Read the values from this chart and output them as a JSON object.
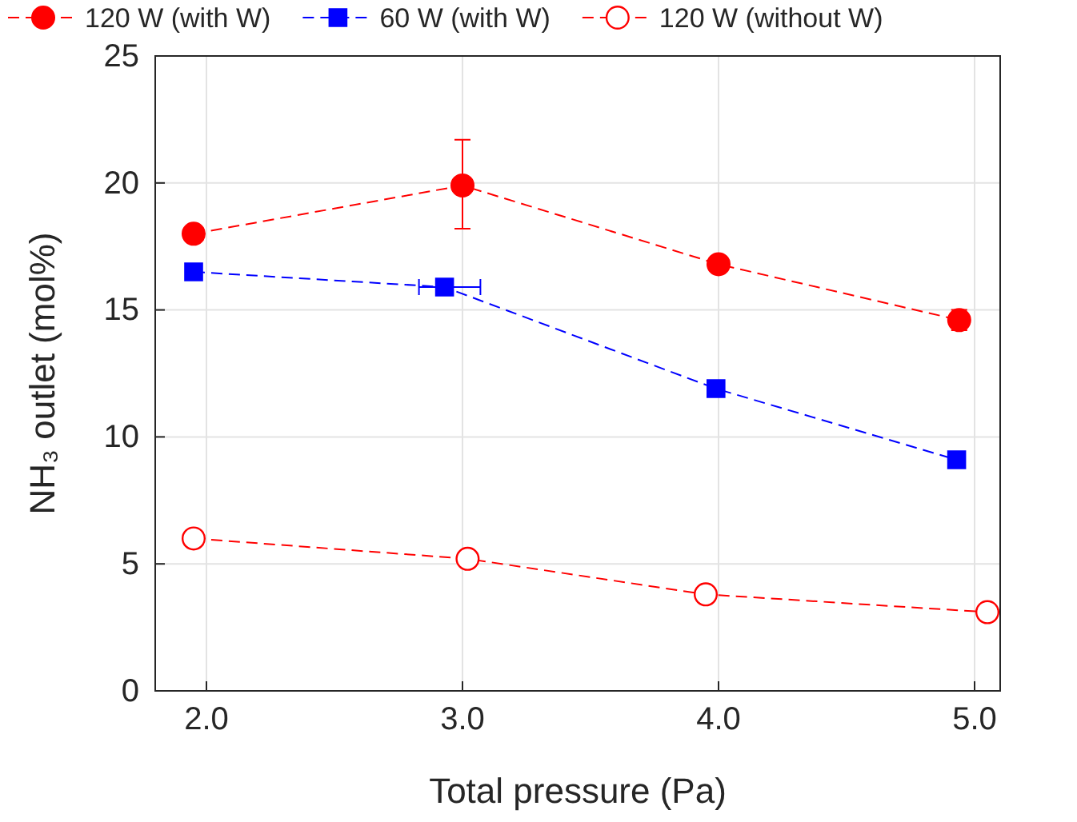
{
  "chart_data": {
    "type": "line",
    "xlabel": "Total pressure (Pa)",
    "ylabel": "NH₃ outlet (mol%)",
    "xlim": [
      1.8,
      5.1
    ],
    "xticks": [
      {
        "value": 2,
        "label": "2.0"
      },
      {
        "value": 3,
        "label": "3.0"
      },
      {
        "value": 4,
        "label": "4.0"
      },
      {
        "value": 5,
        "label": "5.0"
      }
    ],
    "ylim": [
      0,
      25
    ],
    "yticks": [
      0,
      5,
      10,
      15,
      20,
      25
    ],
    "grid": true,
    "legend": "top",
    "line_style": "dashed",
    "series": [
      {
        "name": "120 W (with W)",
        "color": "#ff0000",
        "marker": "circle",
        "x": [
          1.95,
          3.0,
          4.0,
          4.94
        ],
        "values": [
          18.0,
          19.9,
          16.8,
          14.6
        ],
        "errors": [
          null,
          [
            18.2,
            21.7
          ],
          null,
          [
            14.2,
            15.0
          ]
        ]
      },
      {
        "name": "60 W (with W)",
        "color": "#0000ff",
        "marker": "square",
        "x": [
          1.95,
          2.93,
          3.99,
          4.93
        ],
        "values": [
          16.5,
          15.9,
          11.9,
          9.1
        ],
        "xerrors": [
          null,
          [
            2.83,
            3.07
          ],
          null,
          null
        ]
      },
      {
        "name": "120 W (without W)",
        "color": "#ff0000",
        "marker": "circle",
        "x": [
          1.95,
          3.02,
          3.95,
          5.05
        ],
        "values": [
          6.0,
          5.2,
          3.8,
          3.1
        ]
      }
    ]
  }
}
